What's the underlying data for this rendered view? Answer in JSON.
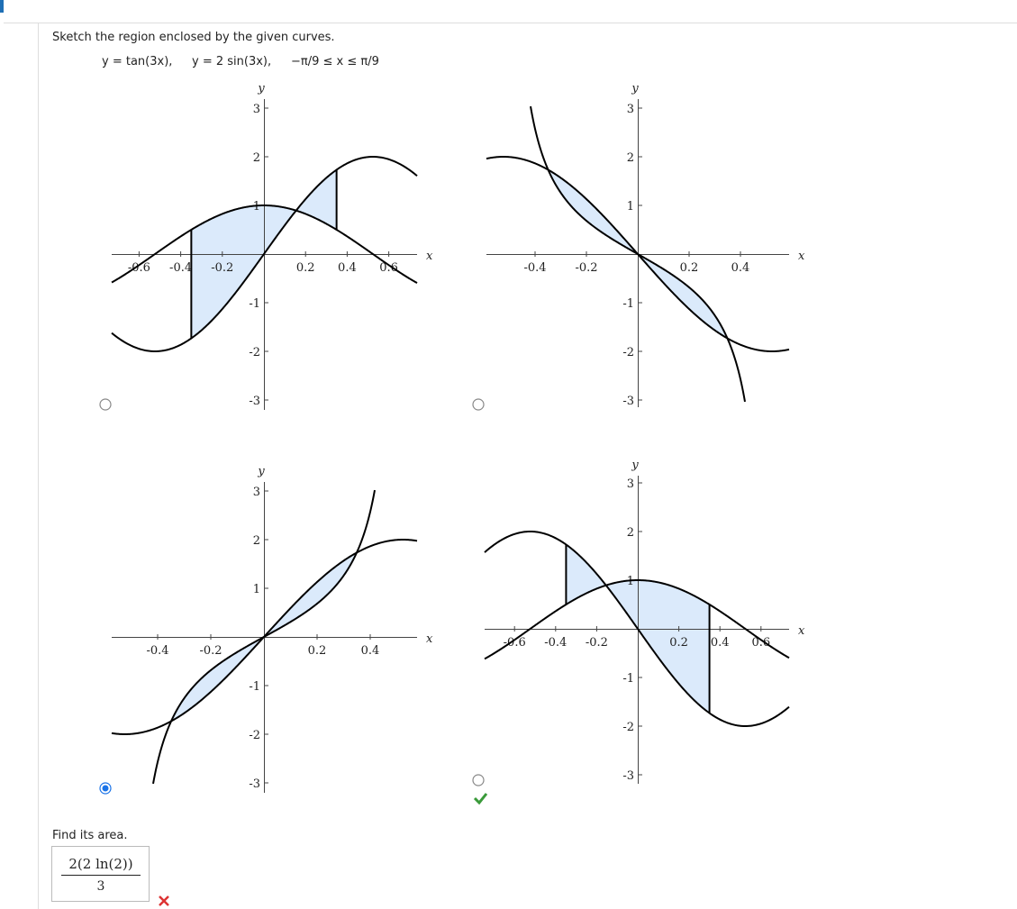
{
  "prompt": "Sketch the region enclosed by the given curves.",
  "equations": [
    "y = tan(3x),",
    "y = 2 sin(3x),",
    "−π/9 ≤ x ≤ π/9"
  ],
  "options": [
    {
      "x_label": "x",
      "y_label": "y",
      "xticks": [
        -0.6,
        -0.4,
        -0.2,
        0.2,
        0.4,
        0.6
      ],
      "yticks": [
        -3,
        -2,
        -1,
        1,
        2,
        3
      ],
      "selected": false
    },
    {
      "x_label": "x",
      "y_label": "y",
      "xticks": [
        -0.4,
        -0.2,
        0.2,
        0.4
      ],
      "yticks": [
        -3,
        -2,
        -1,
        1,
        2,
        3
      ],
      "selected": false
    },
    {
      "x_label": "x",
      "y_label": "y",
      "xticks": [
        -0.4,
        -0.2,
        0.2,
        0.4
      ],
      "yticks": [
        -3,
        -2,
        -1,
        1,
        2,
        3
      ],
      "selected": true
    },
    {
      "x_label": "x",
      "y_label": "y",
      "xticks": [
        -0.6,
        -0.4,
        -0.2,
        0.2,
        0.4,
        0.6
      ],
      "yticks": [
        -3,
        -2,
        -1,
        1,
        2,
        3
      ],
      "selected": false
    }
  ],
  "area_prompt": "Find its area.",
  "answer": {
    "numerator": "2(2 ln(2))",
    "denominator": "3"
  }
}
